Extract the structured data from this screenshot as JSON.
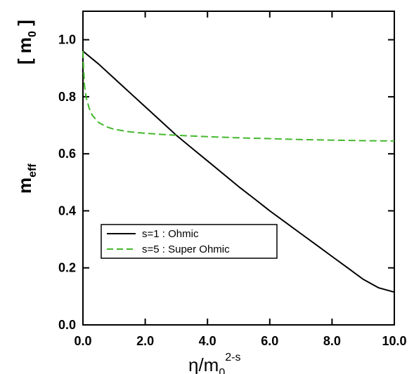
{
  "chart_data": {
    "type": "line",
    "xlabel": {
      "base": "η/m",
      "sub": "0",
      "sup": "2-s"
    },
    "ylabel": {
      "base": "m",
      "sub": "eff"
    },
    "yunit": {
      "open": "[ m",
      "sub": "0",
      "close": " ]"
    },
    "xlim": [
      0,
      10
    ],
    "ylim": [
      0,
      1.1
    ],
    "x_ticks": [
      0,
      2,
      4,
      6,
      8,
      10
    ],
    "x_tick_labels": [
      "0.0",
      "2.0",
      "4.0",
      "6.0",
      "8.0",
      "10.0"
    ],
    "y_ticks": [
      0,
      0.2,
      0.4,
      0.6,
      0.8,
      1.0
    ],
    "y_tick_labels": [
      "0.0",
      "0.2",
      "0.4",
      "0.6",
      "0.8",
      "1.0"
    ],
    "grid": false,
    "legend_position": "center-left",
    "series": [
      {
        "name": "s=1 : Ohmic",
        "color": "#000000",
        "style": "solid",
        "x": [
          0,
          0.5,
          1,
          1.5,
          2,
          2.5,
          3,
          3.5,
          4,
          4.5,
          5,
          5.5,
          6,
          6.5,
          7,
          7.5,
          8,
          8.5,
          9,
          9.5,
          10
        ],
        "y": [
          0.96,
          0.915,
          0.865,
          0.815,
          0.765,
          0.715,
          0.665,
          0.62,
          0.575,
          0.53,
          0.485,
          0.443,
          0.4,
          0.36,
          0.32,
          0.28,
          0.24,
          0.2,
          0.16,
          0.13,
          0.115
        ]
      },
      {
        "name": "s=5 : Super Ohmic",
        "color": "#44b82c",
        "style": "dashed",
        "x": [
          0,
          0.02,
          0.05,
          0.1,
          0.15,
          0.2,
          0.3,
          0.5,
          0.75,
          1,
          1.5,
          2,
          2.5,
          3,
          4,
          5,
          6,
          7,
          8,
          9,
          10
        ],
        "y": [
          0.96,
          0.9,
          0.84,
          0.8,
          0.78,
          0.76,
          0.735,
          0.71,
          0.695,
          0.686,
          0.677,
          0.672,
          0.668,
          0.665,
          0.66,
          0.656,
          0.653,
          0.65,
          0.648,
          0.646,
          0.645
        ]
      }
    ]
  }
}
